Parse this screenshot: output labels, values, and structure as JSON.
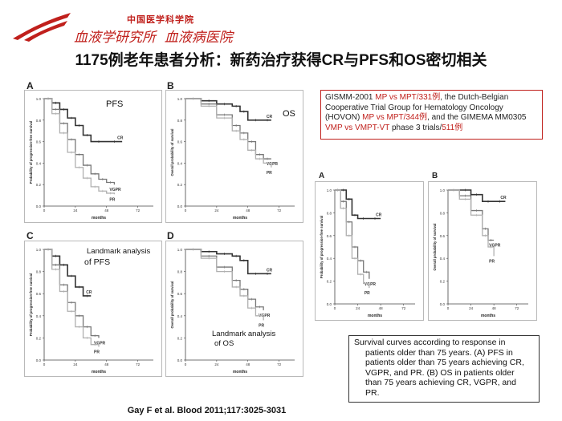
{
  "header": {
    "institute_line1": "中国医学科学院",
    "institute_line2": "血液学研究所  血液病医院"
  },
  "slide": {
    "title": "1175例老年患者分析：新药治疗获得CR与PFS和OS密切相关"
  },
  "trial_box": {
    "t1": "GISMM-2001 ",
    "t2": "MP vs MPT/331例",
    "t3": ", the Dutch-Belgian Cooperative Trial Group for Hematology Oncology (HOVON) ",
    "t4": "MP vs MPT/344例",
    "t5": ", and the GIMEMA MM0305 ",
    "t6": "VMP vs VMPT-VT",
    "t7": " phase 3 trials/",
    "t8": "511例"
  },
  "caption": {
    "text": "Survival curves according to response in patients older than 75 years. (A) PFS in patients older than 75 years achieving CR, VGPR, and PR. (B) OS in patients older than 75 years achieving CR, VGPR, and PR."
  },
  "citation": "Gay F et al. Blood 2011;117:3025-3031",
  "panels": {
    "A": {
      "letter": "A",
      "label": "PFS"
    },
    "B": {
      "letter": "B",
      "label": "OS"
    },
    "C": {
      "letter": "C",
      "label_line1": "Landmark analysis",
      "label_line2": "of PFS"
    },
    "D": {
      "letter": "D",
      "label_line1": "Landmark analysis",
      "label_line2": "of OS"
    },
    "E": {
      "letter": "A"
    },
    "F": {
      "letter": "B"
    }
  },
  "colors": {
    "accent": "#c0201c",
    "cr": "#333333",
    "vgpr": "#777777",
    "pr": "#b0b0b0"
  },
  "chart_data": [
    {
      "id": "A",
      "type": "line",
      "xlabel": "months",
      "ylabel": "Probability of progression-free survival",
      "xticks": [
        0,
        24,
        48,
        72
      ],
      "yticks": [
        0,
        0.2,
        0.4,
        0.6,
        0.8,
        1.0
      ],
      "xlim": [
        0,
        84
      ],
      "ylim": [
        0,
        1
      ],
      "series": [
        {
          "name": "CR",
          "x": [
            0,
            6,
            12,
            18,
            24,
            30,
            36,
            48,
            60
          ],
          "y": [
            1.0,
            0.96,
            0.9,
            0.82,
            0.75,
            0.66,
            0.6,
            0.6,
            0.6
          ]
        },
        {
          "name": "VGPR",
          "x": [
            0,
            6,
            12,
            18,
            24,
            30,
            36,
            42,
            48,
            54
          ],
          "y": [
            1.0,
            0.9,
            0.77,
            0.62,
            0.48,
            0.38,
            0.3,
            0.25,
            0.22,
            0.2
          ]
        },
        {
          "name": "PR",
          "x": [
            0,
            6,
            12,
            18,
            24,
            30,
            36,
            42,
            48,
            54
          ],
          "y": [
            1.0,
            0.86,
            0.68,
            0.5,
            0.36,
            0.26,
            0.18,
            0.14,
            0.12,
            0.11
          ]
        }
      ]
    },
    {
      "id": "B",
      "type": "line",
      "xlabel": "months",
      "ylabel": "Overall probability of survival",
      "xticks": [
        0,
        24,
        48,
        72
      ],
      "yticks": [
        0,
        0.2,
        0.4,
        0.6,
        0.8,
        1.0
      ],
      "xlim": [
        0,
        84
      ],
      "ylim": [
        0,
        1
      ],
      "series": [
        {
          "name": "CR",
          "x": [
            0,
            12,
            24,
            36,
            42,
            48,
            60,
            66
          ],
          "y": [
            1.0,
            0.98,
            0.95,
            0.93,
            0.88,
            0.8,
            0.8,
            0.8
          ]
        },
        {
          "name": "VGPR",
          "x": [
            0,
            12,
            24,
            36,
            42,
            48,
            54,
            60,
            66
          ],
          "y": [
            1.0,
            0.95,
            0.85,
            0.75,
            0.68,
            0.6,
            0.48,
            0.44,
            0.44
          ]
        },
        {
          "name": "PR",
          "x": [
            0,
            12,
            24,
            36,
            42,
            48,
            54,
            60,
            66
          ],
          "y": [
            1.0,
            0.93,
            0.82,
            0.7,
            0.62,
            0.52,
            0.44,
            0.4,
            0.36
          ]
        }
      ]
    },
    {
      "id": "C",
      "type": "line",
      "xlabel": "months",
      "ylabel": "Probability of progression-free survival",
      "xticks": [
        0,
        24,
        48,
        72
      ],
      "yticks": [
        0,
        0.2,
        0.4,
        0.6,
        0.8,
        1.0
      ],
      "xlim": [
        0,
        84
      ],
      "ylim": [
        0,
        1
      ],
      "series": [
        {
          "name": "CR",
          "x": [
            0,
            6,
            12,
            18,
            24,
            30,
            36
          ],
          "y": [
            1.0,
            0.94,
            0.86,
            0.76,
            0.66,
            0.58,
            0.58
          ]
        },
        {
          "name": "VGPR",
          "x": [
            0,
            6,
            12,
            18,
            24,
            30,
            36,
            42
          ],
          "y": [
            1.0,
            0.86,
            0.68,
            0.52,
            0.4,
            0.3,
            0.22,
            0.2
          ]
        },
        {
          "name": "PR",
          "x": [
            0,
            6,
            12,
            18,
            24,
            30,
            36,
            42
          ],
          "y": [
            1.0,
            0.82,
            0.62,
            0.44,
            0.3,
            0.2,
            0.14,
            0.12
          ]
        }
      ]
    },
    {
      "id": "D",
      "type": "line",
      "xlabel": "months",
      "ylabel": "Overall probability of survival",
      "xticks": [
        0,
        24,
        48,
        72
      ],
      "yticks": [
        0,
        0.2,
        0.4,
        0.6,
        0.8,
        1.0
      ],
      "xlim": [
        0,
        84
      ],
      "ylim": [
        0,
        1
      ],
      "series": [
        {
          "name": "CR",
          "x": [
            0,
            12,
            24,
            36,
            42,
            48,
            60,
            66
          ],
          "y": [
            1.0,
            0.98,
            0.96,
            0.94,
            0.9,
            0.78,
            0.78,
            0.78
          ]
        },
        {
          "name": "VGPR",
          "x": [
            0,
            12,
            24,
            36,
            42,
            48,
            54,
            60
          ],
          "y": [
            1.0,
            0.94,
            0.84,
            0.72,
            0.64,
            0.55,
            0.48,
            0.45
          ]
        },
        {
          "name": "PR",
          "x": [
            0,
            12,
            24,
            36,
            42,
            48,
            54,
            60
          ],
          "y": [
            1.0,
            0.92,
            0.8,
            0.66,
            0.58,
            0.47,
            0.4,
            0.36
          ]
        }
      ]
    },
    {
      "id": "E",
      "type": "line",
      "xlabel": "months",
      "ylabel": "Probability of progression-free survival",
      "xticks": [
        0,
        24,
        48,
        72
      ],
      "yticks": [
        0,
        0.2,
        0.4,
        0.6,
        0.8,
        1.0
      ],
      "xlim": [
        0,
        84
      ],
      "ylim": [
        0,
        1
      ],
      "series": [
        {
          "name": "CR",
          "x": [
            0,
            6,
            12,
            18,
            24,
            36,
            48
          ],
          "y": [
            1.0,
            1.0,
            0.92,
            0.78,
            0.75,
            0.75,
            0.75
          ]
        },
        {
          "name": "VGPR",
          "x": [
            0,
            6,
            12,
            18,
            24,
            30,
            36
          ],
          "y": [
            1.0,
            0.9,
            0.72,
            0.5,
            0.38,
            0.28,
            0.22
          ]
        },
        {
          "name": "PR",
          "x": [
            0,
            6,
            12,
            18,
            24,
            30,
            36
          ],
          "y": [
            1.0,
            0.84,
            0.6,
            0.4,
            0.26,
            0.18,
            0.14
          ]
        }
      ]
    },
    {
      "id": "F",
      "type": "line",
      "xlabel": "months",
      "ylabel": "Overall probability of survival",
      "xticks": [
        0,
        24,
        48,
        72
      ],
      "yticks": [
        0,
        0.2,
        0.4,
        0.6,
        0.8,
        1.0
      ],
      "xlim": [
        0,
        84
      ],
      "ylim": [
        0,
        1
      ],
      "series": [
        {
          "name": "CR",
          "x": [
            0,
            12,
            24,
            36,
            48,
            60
          ],
          "y": [
            1.0,
            1.0,
            0.96,
            0.9,
            0.9,
            0.9
          ]
        },
        {
          "name": "VGPR",
          "x": [
            0,
            12,
            24,
            36,
            42,
            48
          ],
          "y": [
            1.0,
            0.95,
            0.82,
            0.66,
            0.56,
            0.56
          ]
        },
        {
          "name": "PR",
          "x": [
            0,
            12,
            24,
            36,
            42,
            48
          ],
          "y": [
            1.0,
            0.92,
            0.78,
            0.6,
            0.5,
            0.42
          ]
        }
      ]
    }
  ]
}
